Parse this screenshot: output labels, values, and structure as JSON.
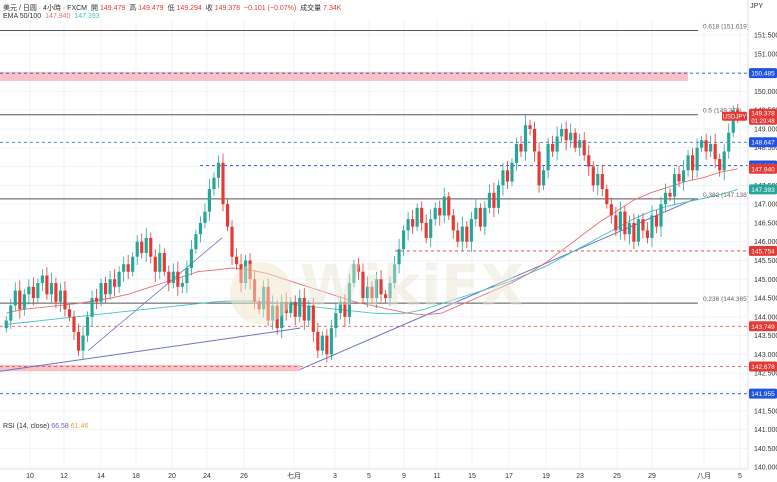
{
  "header": {
    "symbol": "美元 / 日圆 · 4小時 · FXCM",
    "open_label": "開",
    "open": "149.479",
    "high_label": "高",
    "high": "149.479",
    "low_label": "低",
    "low": "149.294",
    "close_label": "收",
    "close": "149.378",
    "change": "−0.101 (−0.07%)",
    "volume_label": "成交量",
    "volume": "7.34K",
    "ema_label": "EMA 50/100",
    "ema50": "147.940",
    "ema100": "147.393",
    "currency": "JPY"
  },
  "rsi": {
    "label": "RSI (14, close)",
    "value1": "66.58",
    "value2": "61.46"
  },
  "watermark": "WikiFX",
  "colors": {
    "up": "#26a69a",
    "down": "#e53935",
    "ema50": "#e8706e",
    "ema100": "#45c4c0",
    "trendline": "#6b74c9",
    "blue_badge": "#1e53e5",
    "red_badge": "#e53935",
    "zone": "#f6b6bd"
  },
  "chart_data": {
    "type": "candlestick",
    "x_tick_labels": [
      "10",
      "12",
      "14",
      "18",
      "20",
      "24",
      "26",
      "七月",
      "3",
      "5",
      "9",
      "11",
      "15",
      "17",
      "19",
      "23",
      "25",
      "29",
      "八月",
      "5"
    ],
    "y_tick_labels": [
      "151.500",
      "151.000",
      "150.500",
      "150.000",
      "149.500",
      "149.000",
      "148.500",
      "148.000",
      "147.500",
      "147.000",
      "146.500",
      "146.000",
      "145.500",
      "145.000",
      "144.500",
      "144.000",
      "143.500",
      "143.000",
      "142.500",
      "142.000",
      "141.500",
      "141.000",
      "140.500",
      "140.000"
    ],
    "ylim": [
      139.95,
      151.9
    ],
    "fib_levels": [
      {
        "label": "0.618 (151.619)",
        "value": 151.619
      },
      {
        "label": "0.5 (149.379)",
        "value": 149.379
      },
      {
        "label": "0.382 (147.138)",
        "value": 147.138
      },
      {
        "label": "0.236 (144.365)",
        "value": 144.365
      }
    ],
    "price_badges": [
      {
        "label": "150.485",
        "value": 150.485,
        "color": "blue"
      },
      {
        "label": "148.647",
        "value": 148.647,
        "color": "blue"
      },
      {
        "label": "148.026",
        "value": 148.026,
        "color": "blue"
      },
      {
        "label": "147.940",
        "value": 147.94,
        "color": "red"
      },
      {
        "label": "147.393",
        "value": 147.393,
        "color": "teal"
      },
      {
        "label": "145.754",
        "value": 145.754,
        "color": "red"
      },
      {
        "label": "143.749",
        "value": 143.749,
        "color": "red"
      },
      {
        "label": "142.678",
        "value": 142.678,
        "color": "red"
      },
      {
        "label": "141.955",
        "value": 141.955,
        "color": "blue"
      }
    ],
    "last_price": {
      "symbol": "USDJPY",
      "value": "149.378",
      "countdown": "01:29:48"
    },
    "zones": [
      {
        "from": 150.28,
        "to": 150.52
      },
      {
        "from": 142.55,
        "to": 142.72
      }
    ],
    "closes": [
      143.9,
      144.3,
      144.7,
      144.2,
      144.6,
      144.8,
      144.5,
      144.9,
      145.1,
      144.6,
      144.9,
      144.4,
      144.7,
      144.2,
      144.0,
      143.6,
      143.1,
      143.5,
      144.0,
      144.5,
      144.4,
      144.9,
      144.6,
      145.0,
      144.8,
      145.2,
      145.4,
      145.2,
      145.6,
      146.0,
      145.7,
      146.1,
      145.6,
      145.2,
      145.7,
      145.2,
      144.9,
      145.2,
      144.8,
      144.9,
      145.3,
      145.8,
      146.2,
      146.5,
      146.8,
      147.4,
      147.7,
      148.1,
      147.0,
      146.4,
      145.6,
      145.4,
      144.9,
      145.5,
      145.0,
      144.4,
      144.2,
      144.8,
      143.9,
      144.3,
      143.7,
      144.4,
      144.1,
      144.4,
      144.0,
      144.5,
      143.9,
      144.3,
      143.6,
      143.1,
      143.5,
      143.0,
      143.7,
      144.1,
      144.4,
      144.0,
      144.9,
      145.4,
      145.2,
      144.5,
      144.8,
      144.5,
      145.0,
      144.6,
      144.5,
      144.9,
      145.4,
      145.8,
      146.3,
      146.6,
      146.4,
      146.9,
      146.5,
      146.1,
      146.6,
      146.9,
      146.7,
      147.2,
      146.7,
      146.3,
      146.0,
      146.4,
      146.0,
      146.6,
      146.9,
      146.4,
      146.9,
      147.3,
      146.9,
      147.5,
      147.9,
      147.6,
      148.1,
      148.6,
      148.4,
      149.1,
      149.0,
      148.4,
      147.5,
      147.9,
      148.6,
      148.4,
      148.8,
      149.0,
      148.7,
      148.9,
      148.5,
      148.7,
      148.3,
      148.0,
      147.5,
      147.8,
      147.4,
      147.0,
      146.7,
      146.3,
      146.8,
      146.2,
      146.5,
      146.0,
      146.6,
      146.3,
      146.1,
      146.7,
      146.4,
      147.0,
      147.3,
      147.2,
      147.8,
      147.6,
      147.9,
      148.3,
      147.9,
      148.5,
      148.7,
      148.4,
      148.6,
      148.2,
      147.9,
      148.4,
      148.9,
      149.5,
      149.378
    ],
    "ema50": [
      144.1,
      144.2,
      144.25,
      144.3,
      144.35,
      144.42,
      144.5,
      144.6,
      144.75,
      144.9,
      145.05,
      145.2,
      145.25,
      145.3,
      145.25,
      145.15,
      145.0,
      144.85,
      144.7,
      144.55,
      144.4,
      144.3,
      144.2,
      144.1,
      144.05,
      144.1,
      144.3,
      144.5,
      144.7,
      144.9,
      145.15,
      145.45,
      145.8,
      146.15,
      146.5,
      146.8,
      147.1,
      147.3,
      147.45,
      147.6,
      147.7,
      147.85,
      147.94
    ],
    "ema100": [
      143.8,
      143.85,
      143.9,
      143.95,
      144.0,
      144.05,
      144.1,
      144.15,
      144.2,
      144.25,
      144.3,
      144.35,
      144.4,
      144.42,
      144.42,
      144.4,
      144.35,
      144.3,
      144.25,
      144.2,
      144.15,
      144.1,
      144.08,
      144.1,
      144.2,
      144.35,
      144.5,
      144.65,
      144.8,
      144.95,
      145.15,
      145.35,
      145.6,
      145.85,
      146.1,
      146.35,
      146.6,
      146.8,
      146.95,
      147.05,
      147.15,
      147.25,
      147.393
    ]
  }
}
